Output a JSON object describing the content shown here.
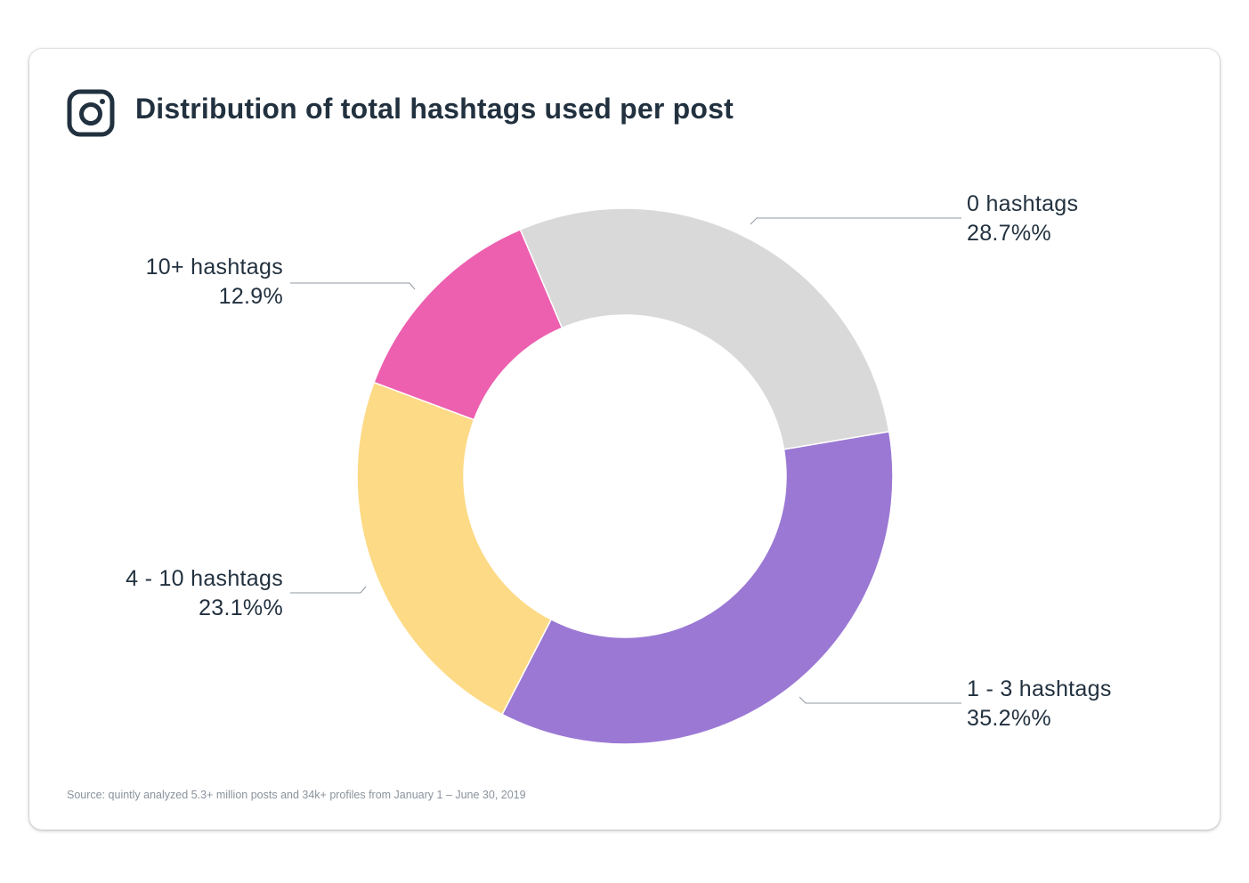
{
  "title": "Distribution of total hashtags used per post",
  "icons": {
    "brand": "instagram-icon"
  },
  "source": "Source: quintly analyzed 5.3+ million posts and 34k+ profiles from January 1 – June 30, 2019",
  "chart_data": {
    "type": "pie",
    "variant": "donut",
    "title": "Distribution of total hashtags used per post",
    "categories": [
      "0 hashtags",
      "1 - 3 hashtags",
      "4 - 10 hashtags",
      "10+ hashtags"
    ],
    "values": [
      28.7,
      35.2,
      23.1,
      12.9
    ],
    "value_labels": [
      "28.7%%",
      "35.2%%",
      "23.1%%",
      "12.9%"
    ],
    "colors": [
      "#d9d9d9",
      "#9b78d4",
      "#fdda85",
      "#ed5faf"
    ],
    "start_angle_deg": -23,
    "direction": "clockwise"
  }
}
